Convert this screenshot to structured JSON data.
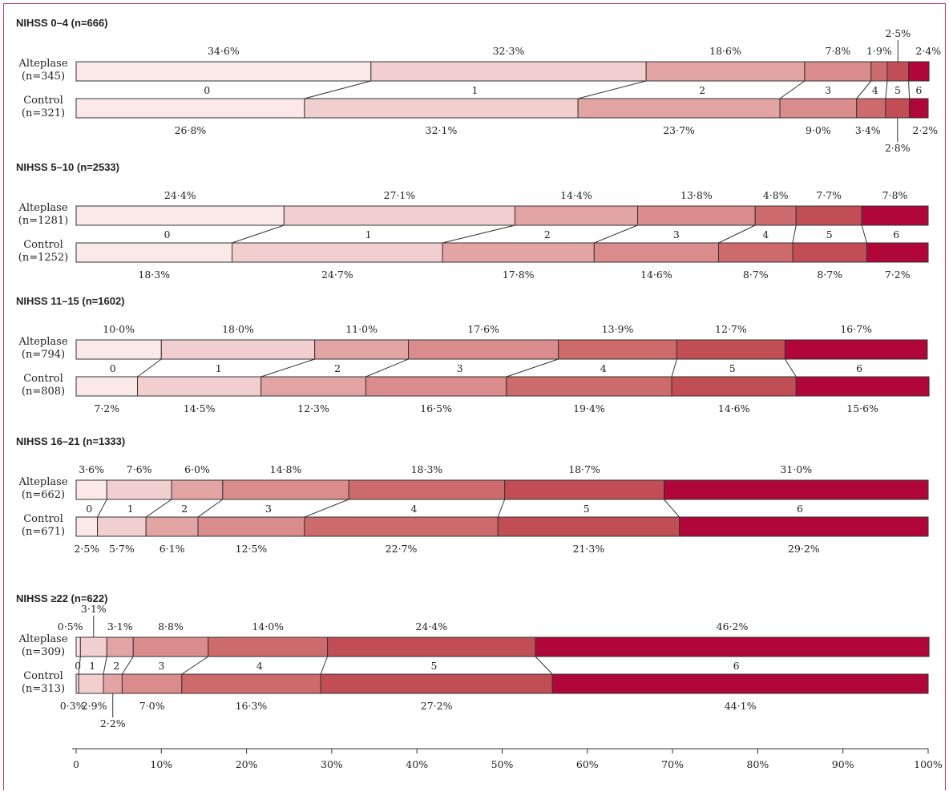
{
  "chart_data": {
    "type": "bar",
    "stacked": "horizontal-100%",
    "categories": [
      "0",
      "1",
      "2",
      "3",
      "4",
      "5",
      "6"
    ],
    "colors": [
      "#fbe9ea",
      "#f2cfcf",
      "#e3a4a4",
      "#da8b8b",
      "#cd6a6b",
      "#c14e55",
      "#b0063a"
    ],
    "xlim": [
      0,
      100
    ],
    "xticks": [
      "0",
      "10%",
      "20%",
      "30%",
      "40%",
      "50%",
      "60%",
      "70%",
      "80%",
      "90%",
      "100%"
    ],
    "panels": [
      {
        "title": "NIHSS 0–4 (n=666)",
        "groups": [
          {
            "name": "Alteplase",
            "n": "(n=345)",
            "values": [
              34.6,
              32.3,
              18.6,
              7.8,
              1.9,
              2.5,
              2.4
            ],
            "labels": [
              "34·6%",
              "32·3%",
              "18·6%",
              "7·8%",
              "1·9%",
              "2·5%",
              "2·4%"
            ]
          },
          {
            "name": "Control",
            "n": "(n=321)",
            "values": [
              26.8,
              32.1,
              23.7,
              9.0,
              3.4,
              2.8,
              2.2
            ],
            "labels": [
              "26·8%",
              "32·1%",
              "23·7%",
              "9·0%",
              "3·4%",
              "2·8%",
              "2·2%"
            ]
          }
        ]
      },
      {
        "title": "NIHSS 5–10 (n=2533)",
        "groups": [
          {
            "name": "Alteplase",
            "n": "(n=1281)",
            "values": [
              24.4,
              27.1,
              14.4,
              13.8,
              4.8,
              7.7,
              7.8
            ],
            "labels": [
              "24·4%",
              "27·1%",
              "14·4%",
              "13·8%",
              "4·8%",
              "7·7%",
              "7·8%"
            ]
          },
          {
            "name": "Control",
            "n": "(n=1252)",
            "values": [
              18.3,
              24.7,
              17.8,
              14.6,
              8.7,
              8.7,
              7.2
            ],
            "labels": [
              "18·3%",
              "24·7%",
              "17·8%",
              "14·6%",
              "8·7%",
              "8·7%",
              "7·2%"
            ]
          }
        ]
      },
      {
        "title": "NIHSS 11–15 (n=1602)",
        "groups": [
          {
            "name": "Alteplase",
            "n": "(n=794)",
            "values": [
              10.0,
              18.0,
              11.0,
              17.6,
              13.9,
              12.7,
              16.7
            ],
            "labels": [
              "10·0%",
              "18·0%",
              "11·0%",
              "17·6%",
              "13·9%",
              "12·7%",
              "16·7%"
            ]
          },
          {
            "name": "Control",
            "n": "(n=808)",
            "values": [
              7.2,
              14.5,
              12.3,
              16.5,
              19.4,
              14.6,
              15.6
            ],
            "labels": [
              "7·2%",
              "14·5%",
              "12·3%",
              "16·5%",
              "19·4%",
              "14·6%",
              "15·6%"
            ]
          }
        ]
      },
      {
        "title": "NIHSS 16–21 (n=1333)",
        "groups": [
          {
            "name": "Alteplase",
            "n": "(n=662)",
            "values": [
              3.6,
              7.6,
              6.0,
              14.8,
              18.3,
              18.7,
              31.0
            ],
            "labels": [
              "3·6%",
              "7·6%",
              "6·0%",
              "14·8%",
              "18·3%",
              "18·7%",
              "31·0%"
            ]
          },
          {
            "name": "Control",
            "n": "(n=671)",
            "values": [
              2.5,
              5.7,
              6.1,
              12.5,
              22.7,
              21.3,
              29.2
            ],
            "labels": [
              "2·5%",
              "5·7%",
              "6·1%",
              "12·5%",
              "22·7%",
              "21·3%",
              "29·2%"
            ]
          }
        ]
      },
      {
        "title": "NIHSS ≥22 (n=622)",
        "groups": [
          {
            "name": "Alteplase",
            "n": "(n=309)",
            "values": [
              0.5,
              3.1,
              3.1,
              8.8,
              14.0,
              24.4,
              46.2
            ],
            "labels": [
              "0·5%",
              "3·1%",
              "3·1%",
              "8·8%",
              "14·0%",
              "24·4%",
              "46·2%"
            ]
          },
          {
            "name": "Control",
            "n": "(n=313)",
            "values": [
              0.3,
              2.9,
              2.2,
              7.0,
              16.3,
              27.2,
              44.1
            ],
            "labels": [
              "0·3%",
              "2·9%",
              "2·2%",
              "7·0%",
              "16·3%",
              "27·2%",
              "44·1%"
            ]
          }
        ]
      }
    ]
  }
}
